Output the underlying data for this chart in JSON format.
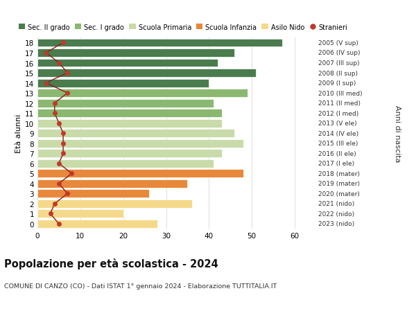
{
  "ages": [
    0,
    1,
    2,
    3,
    4,
    5,
    6,
    7,
    8,
    9,
    10,
    11,
    12,
    13,
    14,
    15,
    16,
    17,
    18
  ],
  "right_labels": [
    "2023 (nido)",
    "2022 (nido)",
    "2021 (nido)",
    "2020 (mater)",
    "2019 (mater)",
    "2018 (mater)",
    "2017 (I ele)",
    "2016 (II ele)",
    "2015 (III ele)",
    "2014 (IV ele)",
    "2013 (V ele)",
    "2012 (I med)",
    "2011 (II med)",
    "2010 (III med)",
    "2009 (I sup)",
    "2008 (II sup)",
    "2007 (III sup)",
    "2006 (IV sup)",
    "2005 (V sup)"
  ],
  "bar_values": [
    28,
    20,
    36,
    26,
    35,
    48,
    41,
    43,
    48,
    46,
    43,
    43,
    41,
    49,
    40,
    51,
    42,
    46,
    57
  ],
  "bar_colors": [
    "#f5d98a",
    "#f5d98a",
    "#f5d98a",
    "#e8883a",
    "#e8883a",
    "#e8883a",
    "#c8dba8",
    "#c8dba8",
    "#c8dba8",
    "#c8dba8",
    "#c8dba8",
    "#8ab870",
    "#8ab870",
    "#8ab870",
    "#4a7c4e",
    "#4a7c4e",
    "#4a7c4e",
    "#4a7c4e",
    "#4a7c4e"
  ],
  "stranieri_values": [
    5,
    3,
    4,
    7,
    5,
    8,
    5,
    6,
    6,
    6,
    5,
    4,
    4,
    7,
    2,
    7,
    5,
    2,
    6
  ],
  "legend_labels": [
    "Sec. II grado",
    "Sec. I grado",
    "Scuola Primaria",
    "Scuola Infanzia",
    "Asilo Nido",
    "Stranieri"
  ],
  "legend_colors": [
    "#4a7c4e",
    "#8ab870",
    "#c8dba8",
    "#e8883a",
    "#f5d98a",
    "#b22222"
  ],
  "title": "Popolazione per età scolastica - 2024",
  "subtitle": "COMUNE DI CANZO (CO) - Dati ISTAT 1° gennaio 2024 - Elaborazione TUTTITALIA.IT",
  "ylabel_left": "Età alunni",
  "ylabel_right": "Anni di nascita",
  "xlim": [
    0,
    65
  ],
  "xticks": [
    0,
    10,
    20,
    30,
    40,
    50,
    60
  ],
  "background_color": "#ffffff",
  "grid_color": "#dddddd",
  "stranieri_line_color": "#8b1a1a",
  "stranieri_marker_color": "#c0392b"
}
